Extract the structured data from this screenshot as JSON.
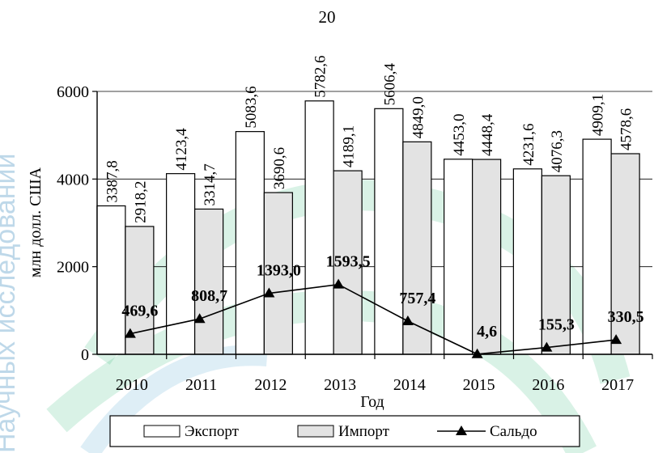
{
  "page_number": "20",
  "watermark_text": "Научных исследований",
  "colors": {
    "export_fill": "#ffffff",
    "import_fill": "#e3e3e3",
    "line": "#000000",
    "grid": "#000000"
  },
  "chart_data": {
    "type": "bar",
    "categories": [
      "2010",
      "2011",
      "2012",
      "2013",
      "2014",
      "2015",
      "2016",
      "2017"
    ],
    "series": [
      {
        "name": "Экспорт",
        "type": "bar",
        "values": [
          3387.8,
          4123.4,
          5083.6,
          5782.6,
          5606.4,
          4453.0,
          4231.6,
          4909.1
        ],
        "labels": [
          "3387,8",
          "4123,4",
          "5083,6",
          "5782,6",
          "5606,4",
          "4453,0",
          "4231,6",
          "4909,1"
        ]
      },
      {
        "name": "Импорт",
        "type": "bar",
        "values": [
          2918.2,
          3314.7,
          3690.6,
          4189.1,
          4849.0,
          4448.4,
          4076.3,
          4578.6
        ],
        "labels": [
          "2918,2",
          "3314,7",
          "3690,6",
          "4189,1",
          "4849,0",
          "4448,4",
          "4076,3",
          "4578,6"
        ]
      },
      {
        "name": "Сальдо",
        "type": "line",
        "values": [
          469.6,
          808.7,
          1393.0,
          1593.5,
          757.4,
          4.6,
          155.3,
          330.5
        ],
        "labels": [
          "469,6",
          "808,7",
          "1393,0",
          "1593,5",
          "757,4",
          "4,6",
          "155,3",
          "330,5"
        ]
      }
    ],
    "title": "",
    "xlabel": "Год",
    "ylabel": "млн долл. США",
    "ylim": [
      0,
      6000
    ],
    "yticks": [
      0,
      2000,
      4000,
      6000
    ],
    "ytick_labels": [
      "0",
      "2000",
      "4000",
      "6000"
    ],
    "grid": true,
    "legend_position": "bottom"
  }
}
